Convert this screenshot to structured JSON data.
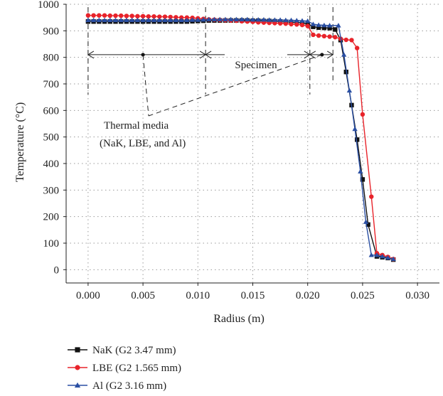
{
  "chart_data": {
    "type": "line",
    "xlabel": "Radius (m)",
    "ylabel": "Temperature (°C)",
    "xlim": [
      -0.002,
      0.032
    ],
    "ylim": [
      -50,
      1000
    ],
    "xticks": [
      "0.000",
      "0.005",
      "0.010",
      "0.015",
      "0.020",
      "0.025",
      "0.030"
    ],
    "xtick_values": [
      0,
      0.005,
      0.01,
      0.015,
      0.02,
      0.025,
      0.03
    ],
    "yticks": [
      "0",
      "100",
      "200",
      "300",
      "400",
      "500",
      "600",
      "700",
      "800",
      "900",
      "1000"
    ],
    "ytick_values": [
      0,
      100,
      200,
      300,
      400,
      500,
      600,
      700,
      800,
      900,
      1000
    ],
    "grid": true,
    "legend_position": "bottom-left",
    "annotations": {
      "specimen": "Specimen",
      "thermal_media_line1": "Thermal media",
      "thermal_media_line2": "(NaK, LBE, and Al)",
      "region_boundaries": [
        0.0,
        0.0107,
        0.0202,
        0.0223
      ]
    },
    "series": [
      {
        "name": "NaK (G2 3.47 mm)",
        "color": "#111111",
        "marker": "square",
        "x": [
          0.0,
          0.0005,
          0.001,
          0.0015,
          0.002,
          0.0025,
          0.003,
          0.0035,
          0.004,
          0.0045,
          0.005,
          0.0055,
          0.006,
          0.0065,
          0.007,
          0.0075,
          0.008,
          0.0085,
          0.009,
          0.0095,
          0.01,
          0.0105,
          0.011,
          0.0115,
          0.012,
          0.0125,
          0.013,
          0.0135,
          0.014,
          0.0145,
          0.015,
          0.0155,
          0.016,
          0.0165,
          0.017,
          0.0175,
          0.018,
          0.0185,
          0.019,
          0.0195,
          0.02,
          0.0205,
          0.021,
          0.0215,
          0.022,
          0.0225,
          0.023,
          0.0235,
          0.024,
          0.0245,
          0.025,
          0.0255,
          0.0263,
          0.0268,
          0.0273,
          0.0278
        ],
        "y": [
          935,
          935,
          935,
          935,
          935,
          935,
          935,
          935,
          935,
          935,
          935,
          935,
          935,
          935,
          935,
          935,
          935,
          935,
          935,
          936,
          937,
          938,
          939,
          939,
          939,
          939,
          939,
          939,
          939,
          939,
          938,
          938,
          937,
          937,
          936,
          935,
          934,
          933,
          932,
          930,
          927,
          915,
          912,
          911,
          910,
          905,
          865,
          745,
          620,
          490,
          340,
          170,
          50,
          47,
          44,
          38
        ]
      },
      {
        "name": "LBE (G2 1.565 mm)",
        "color": "#e8232a",
        "marker": "circle",
        "x": [
          0.0,
          0.0005,
          0.001,
          0.0015,
          0.002,
          0.0025,
          0.003,
          0.0035,
          0.004,
          0.0045,
          0.005,
          0.0055,
          0.006,
          0.0065,
          0.007,
          0.0075,
          0.008,
          0.0085,
          0.009,
          0.0095,
          0.01,
          0.0105,
          0.011,
          0.0115,
          0.012,
          0.0125,
          0.013,
          0.0135,
          0.014,
          0.0145,
          0.015,
          0.0155,
          0.016,
          0.0165,
          0.017,
          0.0175,
          0.018,
          0.0185,
          0.019,
          0.0195,
          0.02,
          0.0205,
          0.021,
          0.0215,
          0.022,
          0.0225,
          0.023,
          0.0235,
          0.024,
          0.0245,
          0.025,
          0.0258,
          0.0263,
          0.0268,
          0.0273,
          0.0278
        ],
        "y": [
          958,
          958,
          958,
          958,
          957,
          957,
          957,
          956,
          956,
          955,
          955,
          954,
          954,
          953,
          953,
          952,
          951,
          950,
          950,
          949,
          947,
          945,
          943,
          942,
          941,
          940,
          939,
          938,
          936,
          935,
          934,
          932,
          931,
          930,
          929,
          928,
          927,
          925,
          924,
          922,
          918,
          885,
          882,
          880,
          878,
          876,
          870,
          866,
          865,
          835,
          585,
          275,
          62,
          55,
          48,
          40
        ]
      },
      {
        "name": "Al (G2 3.16 mm)",
        "color": "#2a4fa3",
        "marker": "triangle",
        "x": [
          0.0,
          0.0005,
          0.001,
          0.0015,
          0.002,
          0.0025,
          0.003,
          0.0035,
          0.004,
          0.0045,
          0.005,
          0.0055,
          0.006,
          0.0065,
          0.007,
          0.0075,
          0.008,
          0.0085,
          0.009,
          0.0095,
          0.01,
          0.0105,
          0.011,
          0.0115,
          0.012,
          0.0125,
          0.013,
          0.0135,
          0.014,
          0.0145,
          0.015,
          0.0155,
          0.016,
          0.0165,
          0.017,
          0.0175,
          0.018,
          0.0185,
          0.019,
          0.0195,
          0.02,
          0.0205,
          0.021,
          0.0215,
          0.022,
          0.0228,
          0.0233,
          0.0238,
          0.0243,
          0.0248,
          0.0253,
          0.0258,
          0.0263,
          0.0268,
          0.0273,
          0.0278
        ],
        "y": [
          940,
          940,
          940,
          940,
          940,
          940,
          940,
          940,
          940,
          940,
          940,
          940,
          940,
          940,
          940,
          940,
          940,
          940,
          940,
          941,
          941,
          942,
          943,
          943,
          943,
          943,
          943,
          943,
          943,
          943,
          942,
          942,
          942,
          941,
          941,
          941,
          940,
          940,
          939,
          938,
          937,
          925,
          922,
          921,
          920,
          920,
          810,
          675,
          530,
          370,
          180,
          55,
          55,
          50,
          45,
          40
        ]
      }
    ]
  }
}
